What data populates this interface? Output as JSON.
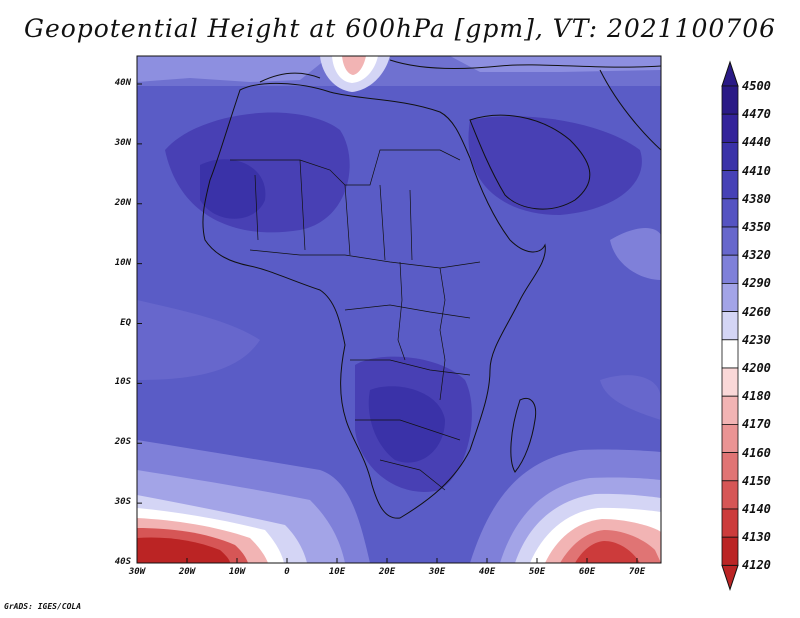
{
  "title": "Geopotential Height at 600hPa [gpm], VT: 2021100706",
  "credit": "GrADS: IGES/COLA",
  "lat_labels": [
    "40N",
    "30N",
    "20N",
    "10N",
    "EQ",
    "10S",
    "20S",
    "30S",
    "40S"
  ],
  "lon_labels": [
    "30W",
    "20W",
    "10W",
    "0",
    "10E",
    "20E",
    "30E",
    "40E",
    "50E",
    "60E",
    "70E"
  ],
  "legend": {
    "levels": [
      "4500",
      "4470",
      "4440",
      "4410",
      "4380",
      "4350",
      "4320",
      "4290",
      "4260",
      "4230",
      "4200",
      "4180",
      "4170",
      "4160",
      "4150",
      "4140",
      "4130",
      "4120"
    ],
    "colors": [
      "#2a1a86",
      "#33239a",
      "#3a32a8",
      "#4641b6",
      "#5553c2",
      "#6767cc",
      "#7f80d9",
      "#a3a4e7",
      "#d4d5f5",
      "#ffffff",
      "#fad8d8",
      "#f2b4b4",
      "#ea9494",
      "#e07474",
      "#d65656",
      "#cc3b3b",
      "#bb2424"
    ]
  },
  "map_colors": {
    "ocean_high": "#4840b4",
    "mid": "#6062c8",
    "low_blue": "#8d8fe0",
    "pale": "#c7c8f2",
    "white": "#ffffff",
    "pink": "#f2b0b0",
    "red": "#d24646",
    "dark_red": "#a81616"
  }
}
